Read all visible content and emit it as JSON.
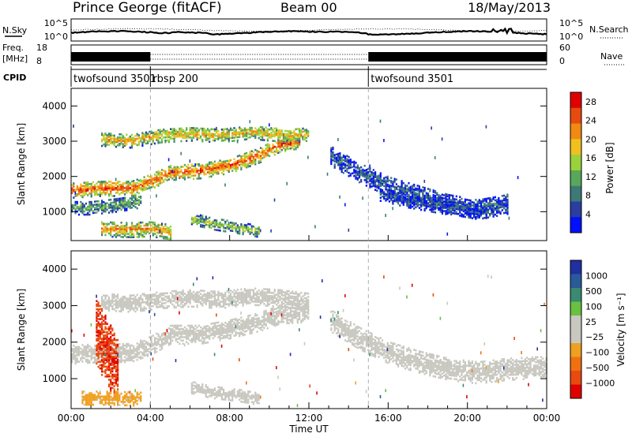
{
  "header": {
    "station": "Prince George (fitACF)",
    "beam": "Beam 00",
    "date": "18/May/2013"
  },
  "top_axes": {
    "nsky_label": "N.Sky",
    "nsky_ticks": [
      "10^5",
      "10^0"
    ],
    "nsearch_label": "N.Search",
    "freq_label_line1": "Freq.",
    "freq_label_line2": "[MHz]",
    "freq_ticks": [
      "18",
      "8"
    ],
    "nave_ticks": [
      "60",
      "0"
    ],
    "nave_label": "Nave",
    "cpid_label": "CPID",
    "cpid_modes": [
      {
        "name": "twofsound 3501",
        "start_hour": 0
      },
      {
        "name": "rbsp 200",
        "start_hour": 4
      },
      {
        "name": "twofsound 3501",
        "start_hour": 15
      }
    ]
  },
  "colors": {
    "power": [
      "#0010ff",
      "#2a3ea0",
      "#3c7a78",
      "#58a85a",
      "#9bd23a",
      "#f0c020",
      "#f08a10",
      "#e84a10",
      "#e00000"
    ],
    "velocity": [
      "#2030a0",
      "#2a5a9a",
      "#3a8a70",
      "#6ac040",
      "#c8c8c0",
      "#c8c8c0",
      "#f0a020",
      "#f07010",
      "#e84a10",
      "#e00000"
    ],
    "line_markers": "#000000"
  },
  "chart_data": [
    {
      "type": "heatmap",
      "panel": "power",
      "ylabel": "Slant Range [km]",
      "ylim": [
        180,
        4500
      ],
      "yticks": [
        "1000",
        "2000",
        "3000",
        "4000"
      ],
      "xlim": [
        "00:00",
        "24:00"
      ],
      "colorbar_label": "Power [dB]",
      "colorbar_ticks": [
        "4",
        "8",
        "12",
        "16",
        "20",
        "24",
        "28"
      ],
      "colorbar_range": [
        0,
        30
      ],
      "bands": [
        {
          "t": [
            0,
            1.5,
            3,
            4,
            5,
            6.5,
            8,
            9.5,
            10.5,
            11.5
          ],
          "r": [
            1600,
            1650,
            1650,
            1850,
            2100,
            2150,
            2300,
            2600,
            2900,
            3000
          ],
          "w": 220,
          "c": 0.7
        },
        {
          "t": [
            1.5,
            3,
            4.5,
            6,
            7.5,
            9,
            10,
            11,
            12
          ],
          "r": [
            3050,
            3000,
            3150,
            3200,
            3150,
            3250,
            3200,
            3150,
            3200
          ],
          "w": 200,
          "c": 0.55
        },
        {
          "t": [
            0,
            1,
            2.5,
            3.5
          ],
          "r": [
            1100,
            1100,
            1200,
            1300
          ],
          "w": 200,
          "c": 0.3
        },
        {
          "t": [
            1.5,
            3,
            4,
            5
          ],
          "r": [
            500,
            480,
            500,
            420
          ],
          "w": 220,
          "c": 0.6
        },
        {
          "t": [
            6,
            7,
            8.5,
            9.5
          ],
          "r": [
            800,
            650,
            520,
            420
          ],
          "w": 160,
          "c": 0.4
        },
        {
          "t": [
            13,
            14.5,
            16,
            17.5,
            19,
            20.5,
            22
          ],
          "r": [
            2600,
            2100,
            1700,
            1450,
            1200,
            1050,
            1200
          ],
          "w": 280,
          "c": 0.18
        },
        {
          "t": [
            15.5,
            17,
            19,
            21
          ],
          "r": [
            1500,
            1300,
            1100,
            1000
          ],
          "w": 200,
          "c": 0.15
        }
      ]
    },
    {
      "type": "heatmap",
      "panel": "velocity",
      "ylabel": "Slant Range [km]",
      "ylim": [
        180,
        4500
      ],
      "yticks": [
        "1000",
        "2000",
        "3000",
        "4000"
      ],
      "xlim": [
        "00:00",
        "24:00"
      ],
      "xticks": [
        "00:00",
        "04:00",
        "08:00",
        "12:00",
        "16:00",
        "20:00",
        "00:00"
      ],
      "xlabel": "Time UT",
      "colorbar_label": "Velocity [m s⁻¹]",
      "colorbar_ticks": [
        "1000",
        "500",
        "100",
        "25",
        "−25",
        "−100",
        "−500",
        "−1000"
      ],
      "colorbar_range": [
        -1200,
        1200
      ],
      "bands": [
        {
          "t": [
            0,
            1.5,
            3,
            4,
            5,
            6.5,
            8,
            9.5,
            10.5,
            12
          ],
          "r": [
            1650,
            1700,
            1700,
            1900,
            2200,
            2200,
            2350,
            2550,
            2750,
            2800
          ],
          "w": 260,
          "v": 0
        },
        {
          "t": [
            1.5,
            3,
            4.5,
            6,
            7.5,
            9,
            10.5,
            12
          ],
          "r": [
            3100,
            3050,
            3150,
            3200,
            3150,
            3250,
            3200,
            3100
          ],
          "w": 240,
          "v": -90
        },
        {
          "t": [
            1.2,
            1.6,
            2.0,
            2.4
          ],
          "r": [
            2300,
            1900,
            1500,
            1100
          ],
          "w": 900,
          "v": -900
        },
        {
          "t": [
            6,
            7,
            8.5,
            9.5
          ],
          "r": [
            750,
            620,
            520,
            420
          ],
          "w": 160,
          "v": 120
        },
        {
          "t": [
            13,
            14.5,
            16,
            17.5,
            19,
            20.5,
            22,
            24
          ],
          "r": [
            2600,
            2100,
            1700,
            1450,
            1250,
            1150,
            1250,
            1300
          ],
          "w": 300,
          "v": 0
        },
        {
          "t": [
            0.5,
            2,
            3.5
          ],
          "r": [
            450,
            450,
            420
          ],
          "w": 180,
          "v": -300
        }
      ]
    }
  ]
}
